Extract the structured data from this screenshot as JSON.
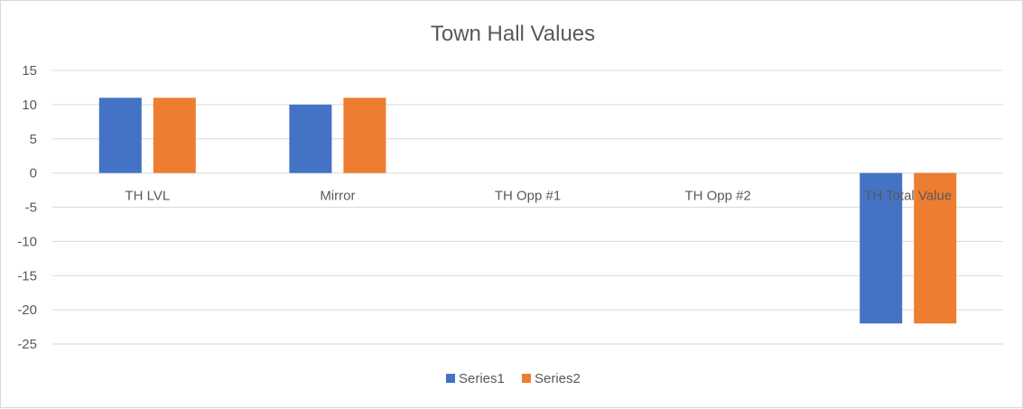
{
  "chart_data": {
    "type": "bar",
    "title": "Town Hall Values",
    "xlabel": "",
    "ylabel": "",
    "categories": [
      "TH LVL",
      "Mirror",
      "TH Opp #1",
      "TH Opp #2",
      "TH Total Value"
    ],
    "series": [
      {
        "name": "Series1",
        "color": "#4472c4",
        "values": [
          11,
          10,
          0,
          0,
          -22
        ]
      },
      {
        "name": "Series2",
        "color": "#ed7d31",
        "values": [
          11,
          11,
          0,
          0,
          -22
        ]
      }
    ],
    "ylim": [
      -25,
      15
    ],
    "yticks": [
      "15",
      "10",
      "5",
      "0",
      "-5",
      "-10",
      "-15",
      "-20",
      "-25"
    ],
    "grid": true,
    "legend": "bottom"
  }
}
